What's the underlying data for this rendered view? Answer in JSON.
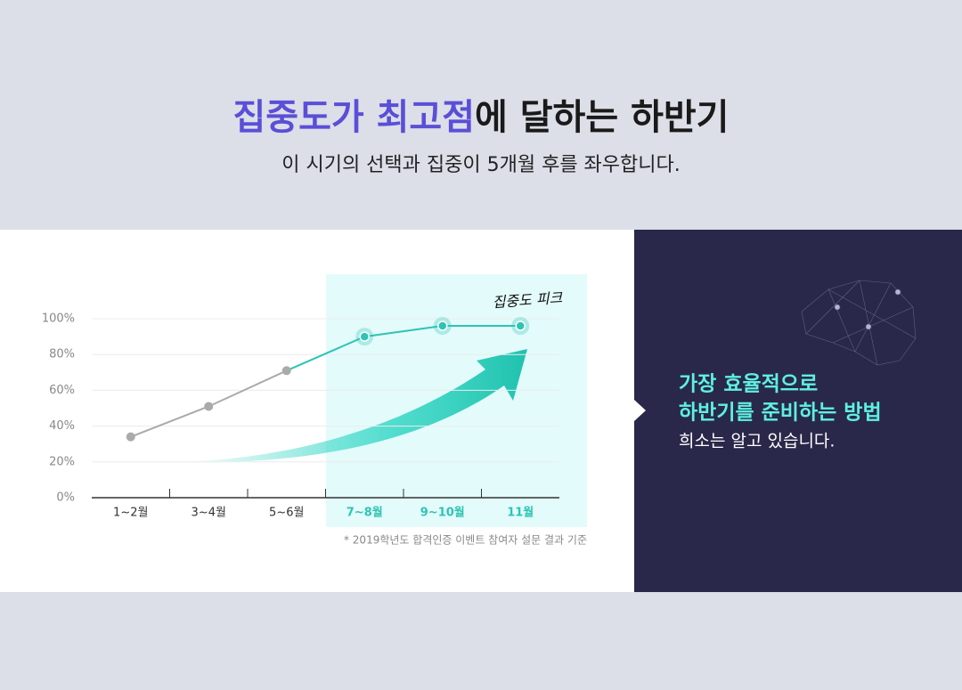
{
  "header": {
    "title_highlight": "집중도가 최고점",
    "title_rest": "에 달하는 하반기",
    "subtitle": "이 시기의 선택과 집중이 5개월 후를 좌우합니다."
  },
  "chart_data": {
    "type": "line",
    "categories": [
      "1~2월",
      "3~4월",
      "5~6월",
      "7~8월",
      "9~10월",
      "11월"
    ],
    "values": [
      34,
      51,
      71,
      90,
      96,
      96
    ],
    "color": "#aaaaaa",
    "highlight_color": "#2ec4b4",
    "highlight_start": 3,
    "ylim": [
      0,
      100
    ],
    "yticks": [
      {
        "value": 0,
        "label": "0%"
      },
      {
        "value": 20,
        "label": "20%"
      },
      {
        "value": 40,
        "label": "40%"
      },
      {
        "value": 60,
        "label": "60%"
      },
      {
        "value": 80,
        "label": "80%"
      },
      {
        "value": 100,
        "label": "100%"
      }
    ],
    "grid": true,
    "annotation": "집중도 피크",
    "note": "* 2019학년도 합격인증 이벤트 참여자 설문 결과 기준"
  },
  "side_panel": {
    "title": [
      "가장 효율적으로",
      "하반기를 준비하는 방법"
    ],
    "text": "희소는 알고 있습니다."
  }
}
